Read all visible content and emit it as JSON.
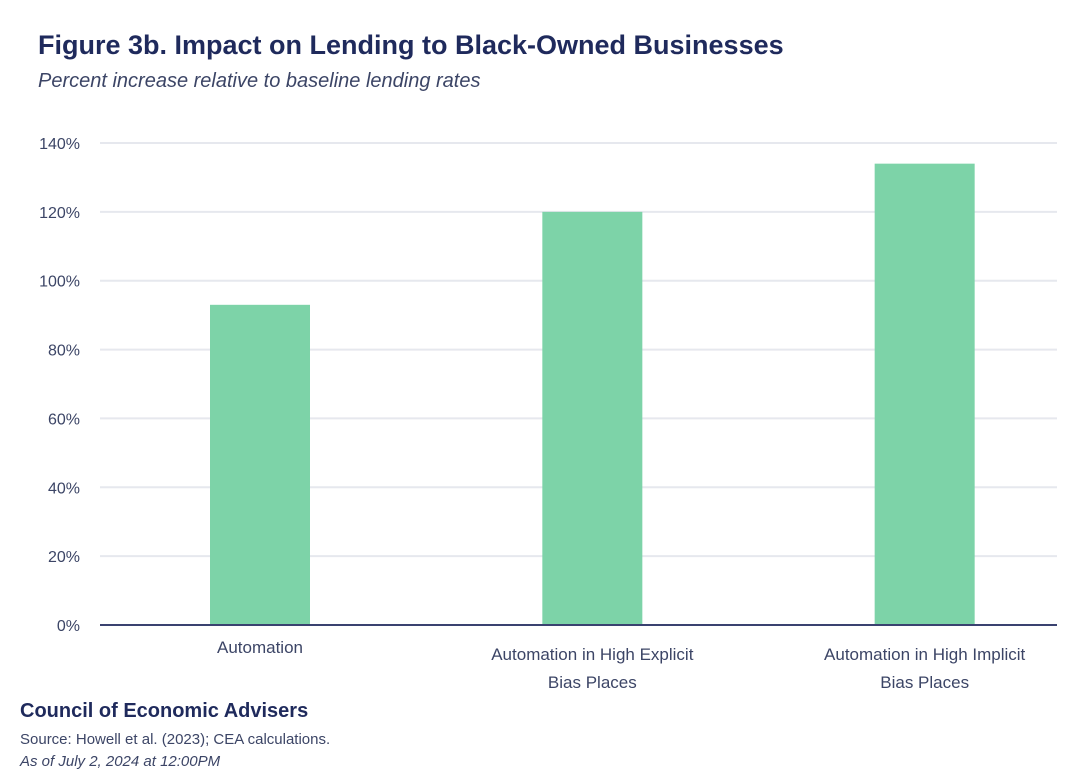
{
  "chart_data": {
    "type": "bar",
    "title": "Figure 3b. Impact on Lending to Black-Owned Businesses",
    "subtitle": "Percent increase relative to baseline lending rates",
    "categories": [
      [
        "Automation"
      ],
      [
        "Automation in High Explicit",
        "Bias Places"
      ],
      [
        "Automation in High Implicit",
        "Bias Places"
      ]
    ],
    "values": [
      93,
      120,
      134
    ],
    "ylim": [
      0,
      140
    ],
    "yticks": [
      0,
      20,
      40,
      60,
      80,
      100,
      120,
      140
    ],
    "ytick_labels": [
      "0%",
      "20%",
      "40%",
      "60%",
      "80%",
      "100%",
      "120%",
      "140%"
    ],
    "xlabel": "",
    "ylabel": "",
    "grid": true,
    "bar_color": "#7dd3a8",
    "grid_color": "#e6e8ee",
    "axis_color": "#3a4270",
    "label_color": "#3c4566"
  },
  "footer": {
    "org": "Council of Economic Advisers",
    "source": "Source: Howell et al. (2023); CEA calculations.",
    "date": "As of July 2, 2024 at 12:00PM"
  }
}
